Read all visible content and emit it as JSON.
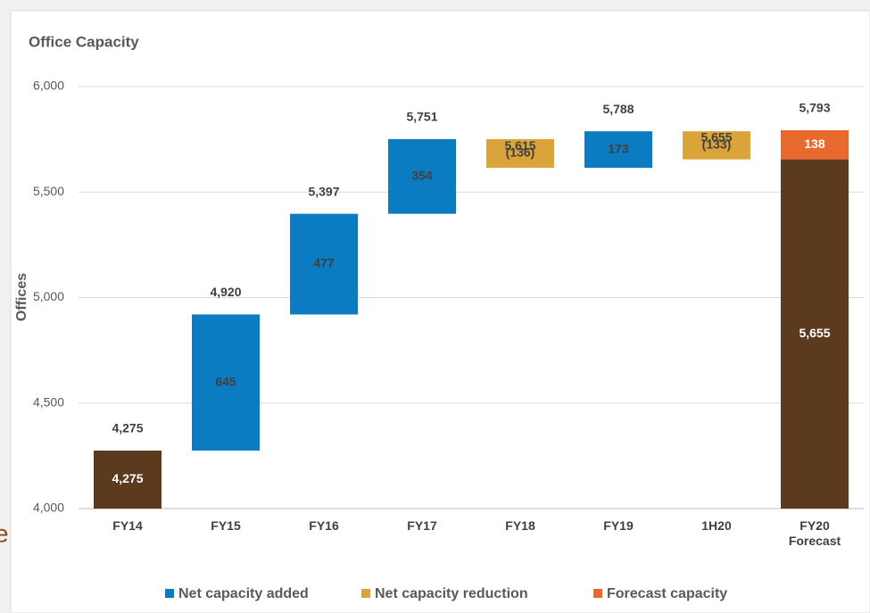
{
  "chart_data": {
    "type": "waterfall",
    "title": "Office Capacity",
    "y_label": "Offices",
    "categories": [
      "FY14",
      "FY15",
      "FY16",
      "FY17",
      "FY18",
      "FY19",
      "1H20",
      "FY20 Forecast"
    ],
    "base": {
      "color": "#5c3a1e",
      "values": [
        4275,
        null,
        null,
        null,
        null,
        null,
        null,
        5655
      ],
      "value_labels": [
        "4,275",
        null,
        null,
        null,
        null,
        null,
        null,
        "5,655"
      ]
    },
    "series": [
      {
        "name": "Net capacity added",
        "color": "#0b7bc2",
        "values": [
          null,
          645,
          477,
          354,
          null,
          173,
          null,
          null
        ]
      },
      {
        "name": "Net capacity reduction",
        "color": "#dba43a",
        "values": [
          null,
          null,
          null,
          null,
          -136,
          null,
          -133,
          null
        ],
        "value_labels": [
          null,
          null,
          null,
          null,
          "(136)",
          null,
          "(133)",
          null
        ]
      },
      {
        "name": "Forecast capacity",
        "color": "#e8692e",
        "values": [
          null,
          null,
          null,
          null,
          null,
          null,
          null,
          138
        ]
      }
    ],
    "totals": [
      4275,
      4920,
      5397,
      5751,
      5615,
      5788,
      5655,
      5793
    ],
    "total_labels": [
      "4,275",
      "4,920",
      "5,397",
      "5,751",
      "5,615",
      "5,788",
      "5,655",
      "5,793"
    ],
    "ylim": [
      4000,
      6000
    ],
    "yticks": [
      {
        "value": 4000,
        "label": "4,000"
      },
      {
        "value": 4500,
        "label": "4,500"
      },
      {
        "value": 5000,
        "label": "5,000"
      },
      {
        "value": 5500,
        "label": "5,500"
      },
      {
        "value": 6000,
        "label": "6,000"
      }
    ],
    "grid": true,
    "legend": "bottom"
  },
  "fragment": "e"
}
